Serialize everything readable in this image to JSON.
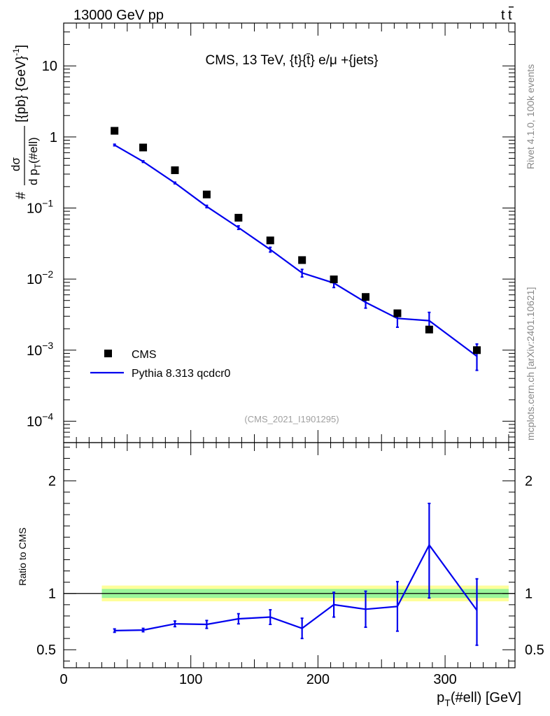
{
  "header": {
    "left": "13000 GeV pp",
    "right_base": "t",
    "right_bar": "t"
  },
  "side_labels": {
    "rivet": "Rivet 4.1.0,  100k events",
    "site": "mcplots.cern.ch [arXiv:2401.10621]"
  },
  "chart_data": [
    {
      "type": "scatter",
      "panel": "main",
      "title": "CMS, 13 TeV, {t}{t̄} e/μ +{jets}",
      "watermark": "(CMS_2021_I1901295)",
      "ylabel": "# dσ / d p_T(#ell) [{pb} {GeV}^-1]",
      "yscale": "log",
      "ylim": [
        5e-05,
        40
      ],
      "xlim": [
        0,
        355
      ],
      "y_ticks": [
        {
          "value": 10,
          "label": "10"
        },
        {
          "value": 1,
          "label": "1"
        },
        {
          "value": 0.1,
          "base": "10",
          "exp": "−1"
        },
        {
          "value": 0.01,
          "base": "10",
          "exp": "−2"
        },
        {
          "value": 0.001,
          "base": "10",
          "exp": "−3"
        },
        {
          "value": 0.0001,
          "base": "10",
          "exp": "−4"
        }
      ],
      "legend": {
        "position": "bottom-left",
        "cms_label": "CMS",
        "mc_label": "Pythia 8.313 qcdcr0"
      },
      "series": [
        {
          "name": "CMS",
          "marker": "square",
          "x": [
            40,
            62.5,
            87.5,
            112.5,
            137.5,
            162.5,
            187.5,
            212.5,
            237.5,
            262.5,
            287.5,
            325
          ],
          "y": [
            1.22,
            0.71,
            0.34,
            0.155,
            0.073,
            0.035,
            0.0185,
            0.0099,
            0.0056,
            0.0033,
            0.00195,
            0.001
          ]
        },
        {
          "name": "Pythia 8.313 qcdcr0",
          "marker": "line",
          "x": [
            40,
            62.5,
            87.5,
            112.5,
            137.5,
            162.5,
            187.5,
            212.5,
            237.5,
            262.5,
            287.5,
            325
          ],
          "y": [
            0.77,
            0.45,
            0.225,
            0.105,
            0.053,
            0.026,
            0.0122,
            0.0088,
            0.0047,
            0.0028,
            0.0026,
            0.00082
          ],
          "err_lo": [
            0.02,
            0.012,
            0.006,
            0.004,
            0.003,
            0.002,
            0.0015,
            0.0012,
            0.0008,
            0.0007,
            0.0008,
            0.0003
          ],
          "err_hi": [
            0.02,
            0.012,
            0.006,
            0.004,
            0.003,
            0.002,
            0.0015,
            0.0012,
            0.0008,
            0.0007,
            0.0008,
            0.0004
          ]
        }
      ]
    },
    {
      "type": "line",
      "panel": "ratio",
      "ylabel": "Ratio to CMS",
      "xlabel": "p_T(#ell) [GeV]",
      "ylim": [
        0.34,
        2.34
      ],
      "xlim": [
        0,
        355
      ],
      "x_ticks": [
        0,
        100,
        200,
        300
      ],
      "y_ticks": [
        0.5,
        1,
        2
      ],
      "bands": {
        "x": [
          30,
          350
        ],
        "inner": [
          0.96,
          1.04
        ],
        "outer": [
          0.93,
          1.07
        ]
      },
      "series": [
        {
          "name": "Pythia 8.313 qcdcr0 / CMS",
          "x": [
            40,
            62.5,
            87.5,
            112.5,
            137.5,
            162.5,
            187.5,
            212.5,
            237.5,
            262.5,
            287.5,
            325
          ],
          "y": [
            0.67,
            0.675,
            0.73,
            0.725,
            0.775,
            0.79,
            0.69,
            0.9,
            0.86,
            0.885,
            1.43,
            0.85
          ],
          "err_lo": [
            0.015,
            0.015,
            0.025,
            0.035,
            0.045,
            0.065,
            0.09,
            0.11,
            0.16,
            0.22,
            0.47,
            0.31
          ],
          "err_hi": [
            0.015,
            0.015,
            0.025,
            0.035,
            0.045,
            0.065,
            0.09,
            0.11,
            0.16,
            0.22,
            0.37,
            0.28
          ]
        }
      ]
    }
  ]
}
